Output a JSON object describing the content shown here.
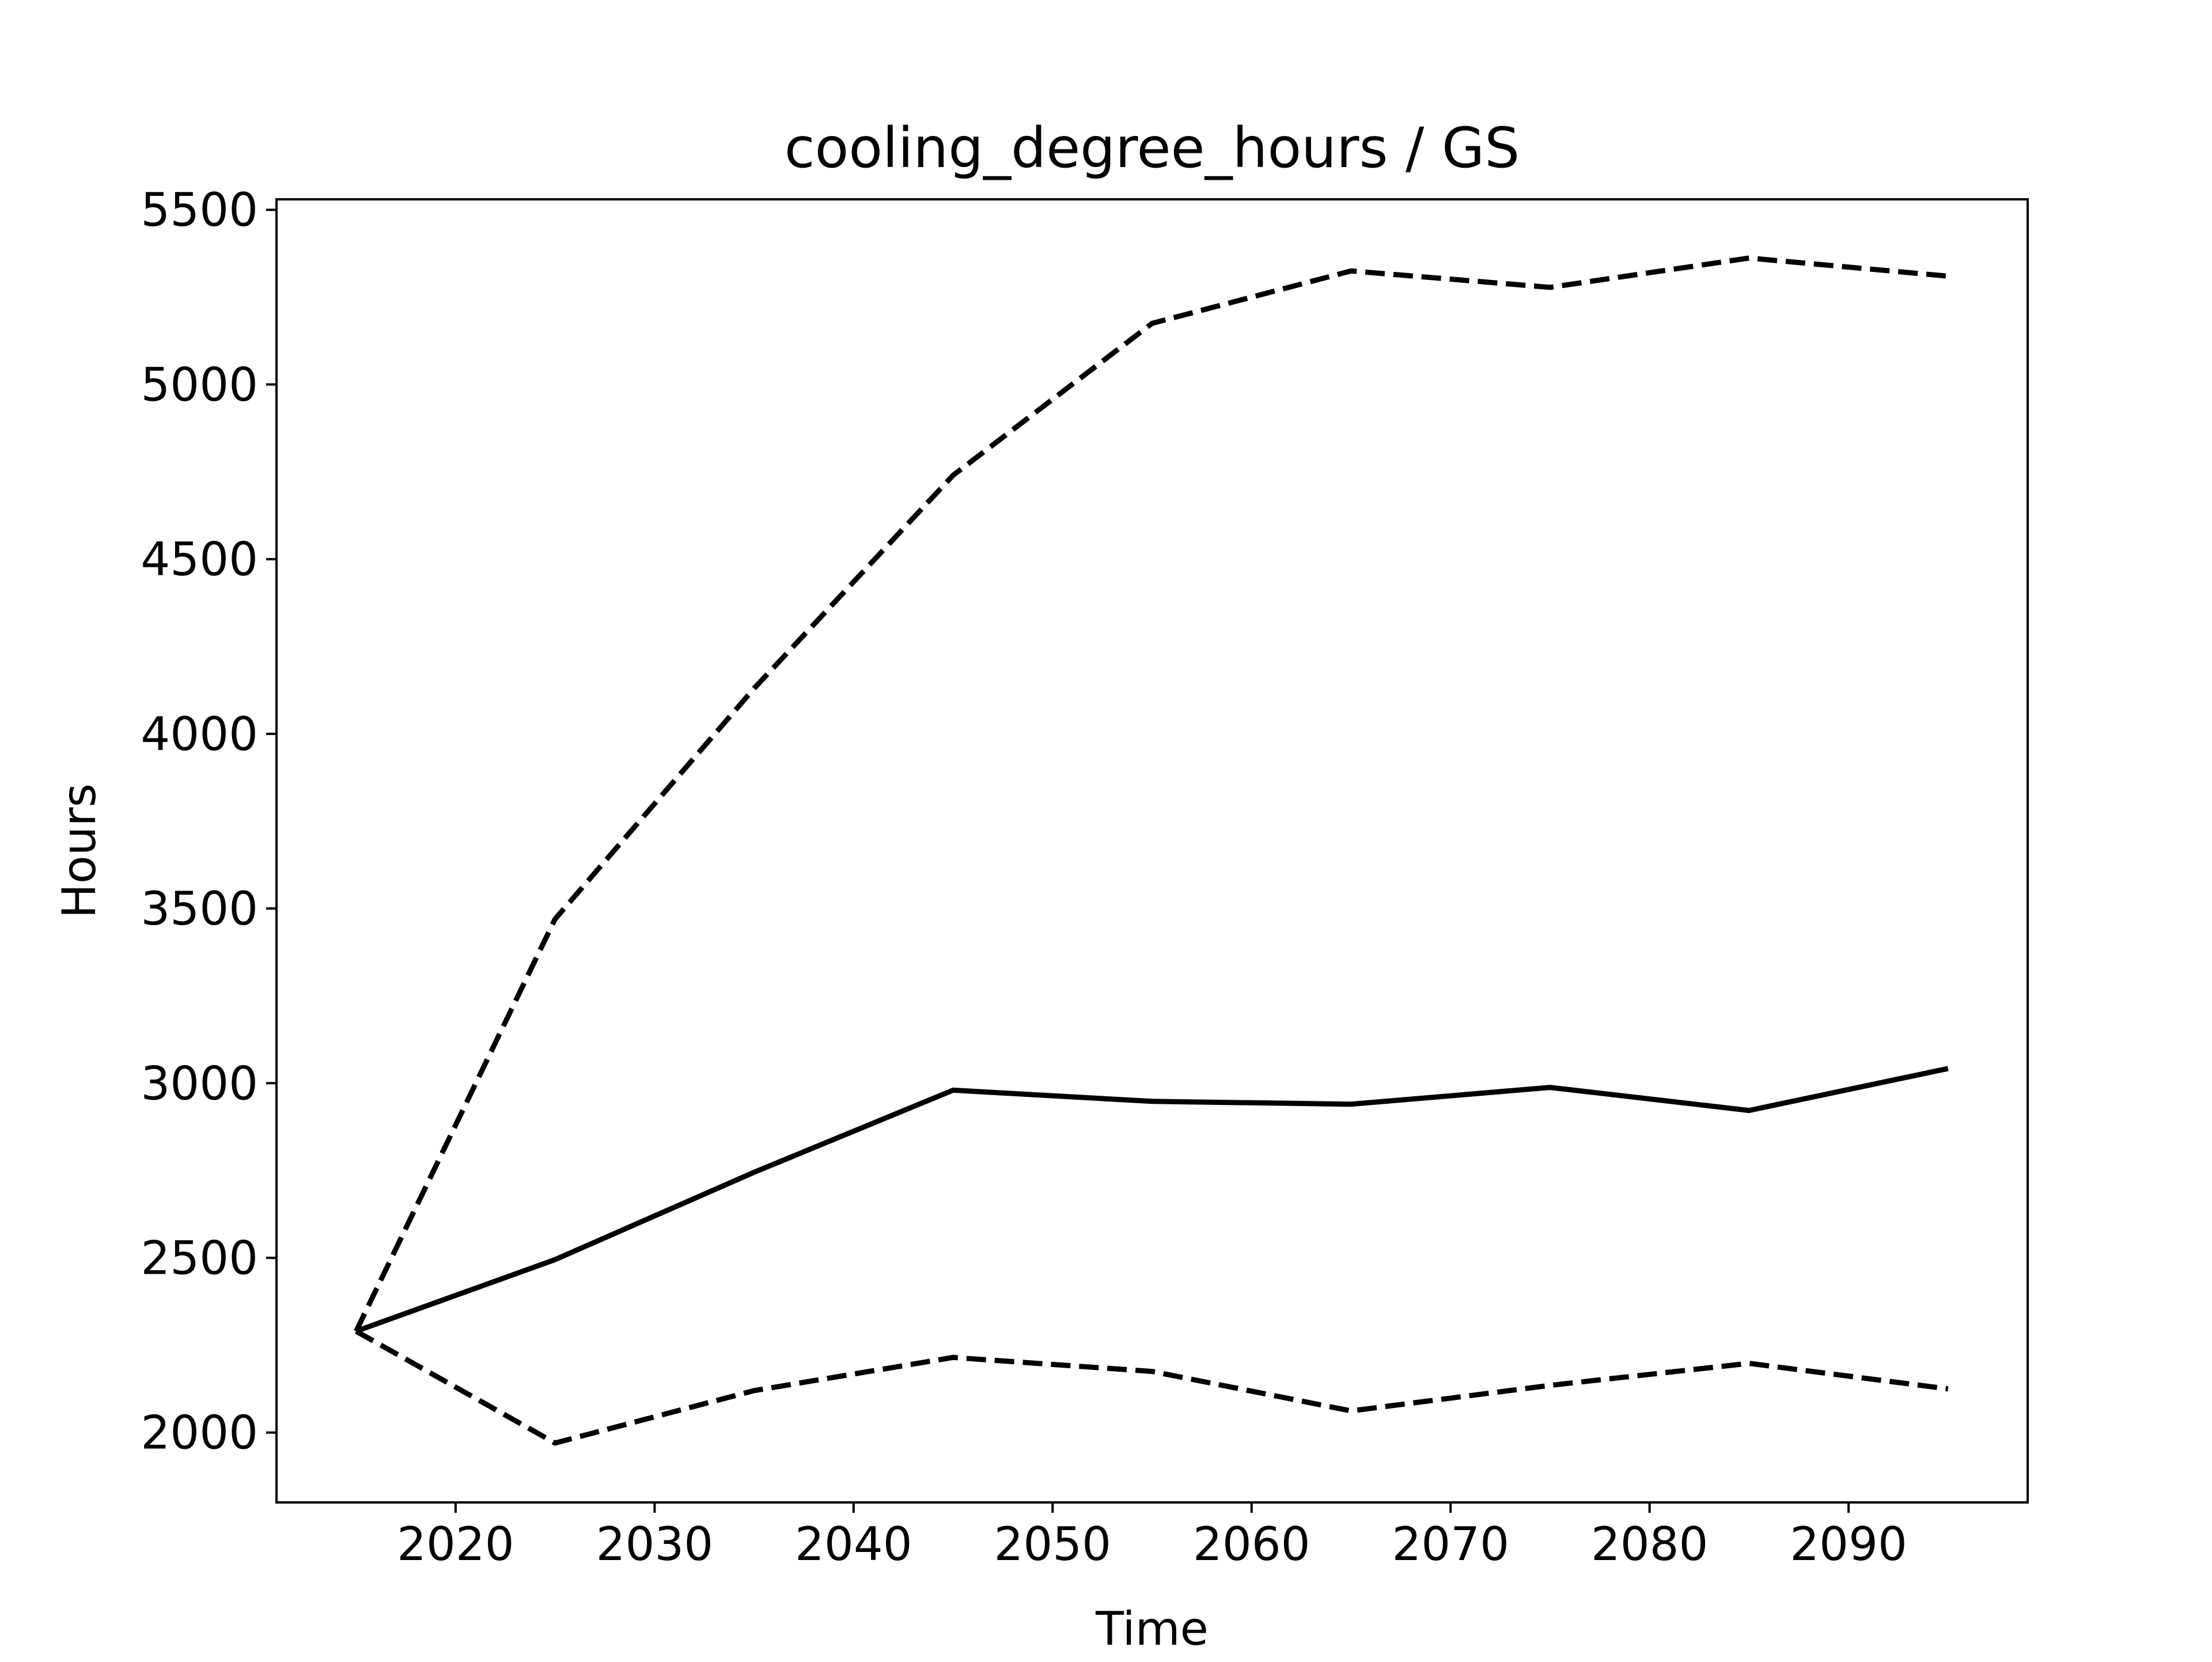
{
  "chart_data": {
    "type": "line",
    "title": "cooling_degree_hours / GS",
    "xlabel": "Time",
    "ylabel": "Hours",
    "x": [
      2015,
      2025,
      2035,
      2045,
      2055,
      2065,
      2075,
      2085,
      2095
    ],
    "xlim": [
      2011,
      2099
    ],
    "ylim": [
      1800,
      5530
    ],
    "xticks": [
      2020,
      2030,
      2040,
      2050,
      2060,
      2070,
      2080,
      2090
    ],
    "yticks": [
      2000,
      2500,
      3000,
      3500,
      4000,
      4500,
      5000,
      5500
    ],
    "grid": false,
    "legend": "none",
    "series": [
      {
        "style": "solid",
        "color": "#000000",
        "values": [
          2290,
          2495,
          2745,
          2980,
          2948,
          2940,
          2988,
          2922,
          3042
        ]
      },
      {
        "style": "dashed",
        "color": "#000000",
        "values": [
          2290,
          3470,
          4130,
          4740,
          5175,
          5325,
          5278,
          5362,
          5310
        ]
      },
      {
        "style": "dashed",
        "color": "#000000",
        "values": [
          2290,
          1970,
          2120,
          2215,
          2175,
          2062,
          2135,
          2198,
          2125
        ]
      }
    ]
  }
}
